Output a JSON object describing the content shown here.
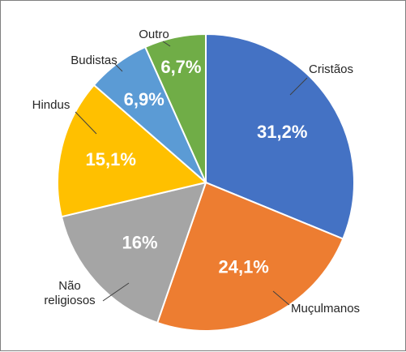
{
  "chart_data": {
    "type": "pie",
    "title": "",
    "slices": [
      {
        "label": "Cristãos",
        "value": 31.2,
        "display": "31,2%",
        "color": "#4472c4"
      },
      {
        "label": "Muçulmanos",
        "value": 24.1,
        "display": "24,1%",
        "color": "#ed7d31"
      },
      {
        "label": "Não religiosos",
        "label_lines": [
          "Não",
          "religiosos"
        ],
        "value": 16,
        "display": "16%",
        "color": "#a5a5a5"
      },
      {
        "label": "Hindus",
        "value": 15.1,
        "display": "15,1%",
        "color": "#ffc000"
      },
      {
        "label": "Budistas",
        "value": 6.9,
        "display": "6,9%",
        "color": "#5b9bd5"
      },
      {
        "label": "Outro",
        "value": 6.7,
        "display": "6,7%",
        "color": "#70ad47"
      }
    ],
    "start": "12 o'clock",
    "direction": "clockwise",
    "legend": "none",
    "labels": "category labels outside with leader lines, percentages inside slices"
  }
}
